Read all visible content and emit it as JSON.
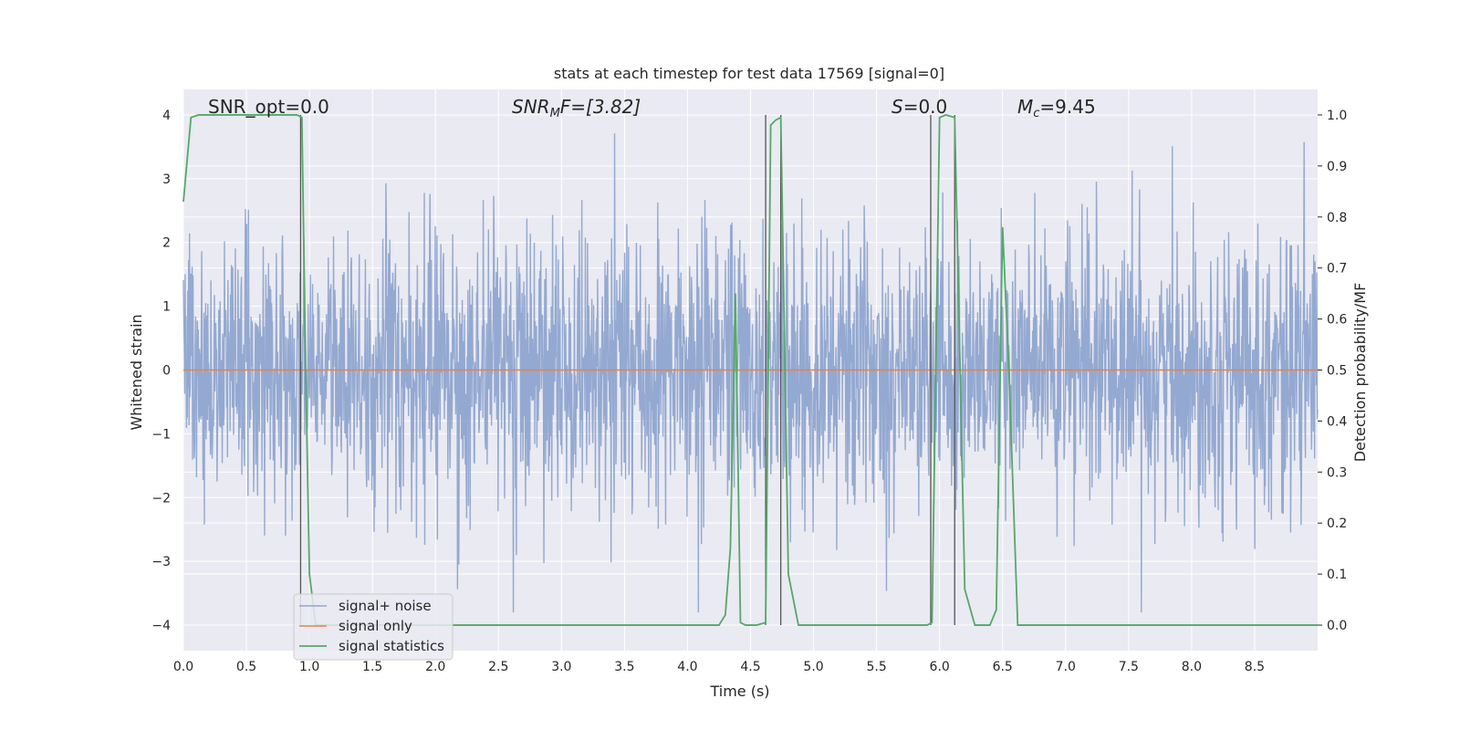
{
  "chart_data": {
    "type": "line",
    "title": "stats at each timestep for test data 17569 [signal=0]",
    "xlabel": "Time (s)",
    "ylabel_left": "Whitened strain",
    "ylabel_right": "Detection probability/MF",
    "xlim": [
      0.0,
      9.0
    ],
    "ylim_left": [
      -4.4,
      4.4
    ],
    "ylim_right": [
      -0.05,
      1.05
    ],
    "xticks": [
      "0.0",
      "0.5",
      "1.0",
      "1.5",
      "2.0",
      "2.5",
      "3.0",
      "3.5",
      "4.0",
      "4.5",
      "5.0",
      "5.5",
      "6.0",
      "6.5",
      "7.0",
      "7.5",
      "8.0",
      "8.5"
    ],
    "yticks_left": [
      "−4",
      "−3",
      "−2",
      "−1",
      "0",
      "1",
      "2",
      "3",
      "4"
    ],
    "yticks_right": [
      "0.0",
      "0.1",
      "0.2",
      "0.3",
      "0.4",
      "0.5",
      "0.6",
      "0.7",
      "0.8",
      "0.9",
      "1.0"
    ],
    "grid": true,
    "legend_position": "lower-left",
    "annotations": {
      "snr_opt": "SNR_opt=0.0",
      "snr_mf_prefix": "SNR",
      "snr_mf_sub": "M",
      "snr_mf_suffix": "F=[3.82]",
      "s_prefix": "S",
      "s_suffix": "=0.0",
      "mc_prefix": "M",
      "mc_sub": "c",
      "mc_suffix": "=9.45"
    },
    "series": [
      {
        "name": "signal+ noise",
        "color": "#8fa5cf",
        "description_values": "whitened noise, approx. ±1.6 typical, peaks to ±3.8",
        "x_range": [
          0.0,
          9.0
        ],
        "y_range": [
          -3.8,
          3.8
        ]
      },
      {
        "name": "signal only",
        "color": "#dd8452",
        "x": [
          0.0,
          9.0
        ],
        "y": [
          0.0,
          0.0
        ]
      },
      {
        "name": "signal statistics",
        "color": "#55a868",
        "axis": "right",
        "x": [
          0.0,
          0.06,
          0.12,
          0.5,
          0.9,
          0.94,
          0.97,
          1.0,
          1.05,
          4.25,
          4.3,
          4.34,
          4.38,
          4.42,
          4.46,
          4.55,
          4.62,
          4.66,
          4.7,
          4.74,
          4.8,
          4.88,
          5.9,
          5.94,
          6.0,
          6.05,
          6.12,
          6.2,
          6.28,
          6.4,
          6.45,
          6.5,
          6.55,
          6.62,
          9.0
        ],
        "y": [
          0.83,
          0.995,
          1.0,
          1.0,
          1.0,
          0.995,
          0.5,
          0.1,
          0.0,
          0.0,
          0.02,
          0.15,
          0.65,
          0.005,
          0.0,
          0.0,
          0.005,
          0.98,
          0.99,
          0.995,
          0.1,
          0.0,
          0.0,
          0.005,
          0.995,
          1.0,
          0.995,
          0.07,
          0.0,
          0.0,
          0.03,
          0.78,
          0.5,
          0.0,
          0.0
        ]
      }
    ],
    "vertical_lines_x": [
      0.93,
      4.62,
      4.74,
      5.93,
      6.12
    ]
  },
  "legend": {
    "items": [
      {
        "label": "signal+ noise",
        "color": "#8fa5cf"
      },
      {
        "label": "signal only",
        "color": "#dd8452"
      },
      {
        "label": "signal statistics",
        "color": "#55a868"
      }
    ]
  }
}
